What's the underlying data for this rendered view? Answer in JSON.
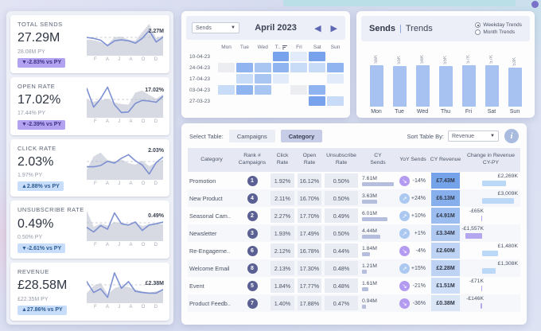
{
  "page": {
    "teal_strip_color": "#badfe7",
    "accent_colors": {
      "purple": "#b3a2ef",
      "blue": "#c8ddf9",
      "bar_blue": "#a7c2f0",
      "revenue_blue": "#6f9fe8"
    }
  },
  "kpi": {
    "cards": [
      {
        "label": "TOTAL SENDS",
        "value": "27.29M",
        "py": "28.08M PY",
        "badge": "▼-2.83% vs PY",
        "badge_style": "purple",
        "spark_label": "2.27M",
        "months": [
          "F",
          "A",
          "J",
          "A",
          "O",
          "D"
        ],
        "line": [
          55,
          52,
          46,
          28,
          44,
          47,
          44,
          36,
          52,
          78,
          40,
          56
        ],
        "area": [
          48,
          46,
          40,
          32,
          56,
          58,
          48,
          44,
          72,
          100,
          52,
          62
        ]
      },
      {
        "label": "OPEN RATE",
        "value": "17.02%",
        "py": "17.44% PY",
        "badge": "▼-2.39% vs PY",
        "badge_style": "purple",
        "spark_label": "17.02%",
        "months": [
          "F",
          "A",
          "J",
          "A",
          "O",
          "D"
        ],
        "line": [
          92,
          30,
          58,
          96,
          38,
          12,
          14,
          42,
          52,
          50,
          46,
          66
        ],
        "area": [
          55,
          48,
          52,
          58,
          45,
          40,
          38,
          78,
          85,
          70,
          58,
          72
        ]
      },
      {
        "label": "CLICK RATE",
        "value": "2.03%",
        "py": "1.97% PY",
        "badge": "▲2.88% vs PY",
        "badge_style": "blue",
        "spark_label": "2.03%",
        "months": [
          "F",
          "A",
          "J",
          "A",
          "O",
          "D"
        ],
        "line": [
          38,
          38,
          42,
          56,
          50,
          66,
          78,
          58,
          44,
          14,
          52,
          70
        ],
        "area": [
          28,
          72,
          85,
          60,
          55,
          62,
          50,
          45,
          58,
          40,
          52,
          62
        ]
      },
      {
        "label": "UNSUBSCRIBE RATE",
        "value": "0.49%",
        "py": "0.50% PY",
        "badge": "▼-2.61% vs PY",
        "badge_style": "blue",
        "spark_label": "0.49%",
        "months": [
          "F",
          "A",
          "J",
          "A",
          "O",
          "D"
        ],
        "line": [
          40,
          25,
          46,
          34,
          88,
          52,
          48,
          58,
          30,
          48,
          52,
          58
        ],
        "area": [
          95,
          42,
          52,
          46,
          58,
          54,
          50,
          55,
          45,
          50,
          54,
          50
        ]
      },
      {
        "label": "REVENUE",
        "value": "£28.58M",
        "py": "£22.35M PY",
        "badge": "▲27.86% vs PY",
        "badge_style": "blue",
        "spark_label": "£2.38M",
        "months": [
          "F",
          "A",
          "J",
          "A",
          "O",
          "D"
        ],
        "line": [
          66,
          30,
          42,
          14,
          95,
          44,
          66,
          34,
          30,
          28,
          28,
          40
        ],
        "area": [
          28,
          52,
          62,
          24,
          44,
          52,
          48,
          40,
          34,
          30,
          34,
          40
        ]
      }
    ]
  },
  "calendar": {
    "measure": "Sends",
    "title": "April 2023",
    "prev": "◀",
    "next": "▶",
    "days": [
      "Mon",
      "Tue",
      "Wed",
      "T..",
      "Fri",
      "Sat",
      "Sun"
    ],
    "sorted_day_index": 3,
    "palette": [
      "transparent",
      "#ebedf1",
      "#e2ebfa",
      "#c8dbf7",
      "#a9c6f3",
      "#8fb4f0",
      "#78a3ec"
    ],
    "rows": [
      {
        "date": "10-04-23",
        "cells": [
          0,
          0,
          0,
          6,
          2,
          6,
          0
        ]
      },
      {
        "date": "24-04-23",
        "cells": [
          1,
          5,
          4,
          5,
          3,
          3,
          5
        ]
      },
      {
        "date": "17-04-23",
        "cells": [
          0,
          3,
          4,
          2,
          0,
          0,
          2
        ]
      },
      {
        "date": "03-04-23",
        "cells": [
          3,
          5,
          4,
          0,
          1,
          5,
          0
        ]
      },
      {
        "date": "27-03-23",
        "cells": [
          0,
          0,
          0,
          0,
          0,
          6,
          3
        ]
      }
    ]
  },
  "trends": {
    "title_left": "Sends",
    "divider": "|",
    "title_right": "Trends",
    "radios": [
      {
        "label": "Weekday Trends",
        "selected": true
      },
      {
        "label": "Month Trends",
        "selected": false
      }
    ],
    "categories": [
      "Mon",
      "Tue",
      "Wed",
      "Thu",
      "Fri",
      "Sat",
      "Sun"
    ],
    "values": [
      56,
      55,
      56,
      55,
      57,
      57,
      53
    ],
    "labels": [
      "56K",
      "55K",
      "56K",
      "55K",
      "57K",
      "57K",
      "53K"
    ]
  },
  "table": {
    "select_label": "Select Table:",
    "tabs": [
      {
        "label": "Campaigns",
        "selected": false
      },
      {
        "label": "Category",
        "selected": true
      }
    ],
    "sort_label": "Sort Table By:",
    "sort_value": "Revenue",
    "info_glyph": "i",
    "columns": [
      "Category",
      "Rank #|Campaigns",
      "Click|Rate",
      "Open|Rate",
      "Unsubscribe|Rate",
      "CY|Sends",
      "YoY Sends",
      "CY Revenue",
      "Change in Revenue|CY-PY"
    ],
    "rows": [
      {
        "category": "Promotion",
        "rank": "1",
        "click": "1.92%",
        "open": "16.12%",
        "unsub": "0.50%",
        "sends": "7.61M",
        "sends_val": 7.61,
        "yoy_dir": "down",
        "yoy": "-14%",
        "revenue": "£7.43M",
        "revenue_val": 7.43,
        "change": "£2,269K",
        "change_val": 2269
      },
      {
        "category": "New Product",
        "rank": "4",
        "click": "2.11%",
        "open": "16.70%",
        "unsub": "0.50%",
        "sends": "3.63M",
        "sends_val": 3.63,
        "yoy_dir": "up",
        "yoy": "+24%",
        "revenue": "£6.13M",
        "revenue_val": 6.13,
        "change": "£3,009K",
        "change_val": 3009
      },
      {
        "category": "Seasonal Cam..",
        "rank": "2",
        "click": "2.27%",
        "open": "17.70%",
        "unsub": "0.49%",
        "sends": "6.01M",
        "sends_val": 6.01,
        "yoy_dir": "up",
        "yoy": "+10%",
        "revenue": "£4.91M",
        "revenue_val": 4.91,
        "change": "-£65K",
        "change_val": -65
      },
      {
        "category": "Newsletter",
        "rank": "3",
        "click": "1.93%",
        "open": "17.49%",
        "unsub": "0.50%",
        "sends": "4.44M",
        "sends_val": 4.44,
        "yoy_dir": "up",
        "yoy": "+1%",
        "revenue": "£3.34M",
        "revenue_val": 3.34,
        "change": "-£1,557K",
        "change_val": -1557
      },
      {
        "category": "Re-Engageme..",
        "rank": "6",
        "click": "2.12%",
        "open": "16.78%",
        "unsub": "0.44%",
        "sends": "1.84M",
        "sends_val": 1.84,
        "yoy_dir": "down",
        "yoy": "-4%",
        "revenue": "£2.60M",
        "revenue_val": 2.6,
        "change": "£1,480K",
        "change_val": 1480
      },
      {
        "category": "Welcome Email",
        "rank": "8",
        "click": "2.13%",
        "open": "17.30%",
        "unsub": "0.48%",
        "sends": "1.21M",
        "sends_val": 1.21,
        "yoy_dir": "up",
        "yoy": "+15%",
        "revenue": "£2.28M",
        "revenue_val": 2.28,
        "change": "£1,308K",
        "change_val": 1308
      },
      {
        "category": "Event",
        "rank": "5",
        "click": "1.84%",
        "open": "17.77%",
        "unsub": "0.48%",
        "sends": "1.61M",
        "sends_val": 1.61,
        "yoy_dir": "down",
        "yoy": "-21%",
        "revenue": "£1.51M",
        "revenue_val": 1.51,
        "change": "-£71K",
        "change_val": -71
      },
      {
        "category": "Product Feedb..",
        "rank": "7",
        "click": "1.40%",
        "open": "17.88%",
        "unsub": "0.47%",
        "sends": "0.94M",
        "sends_val": 0.94,
        "yoy_dir": "down",
        "yoy": "-36%",
        "revenue": "£0.38M",
        "revenue_val": 0.38,
        "change": "-£146K",
        "change_val": -146
      }
    ]
  },
  "chart_data": [
    {
      "type": "bar",
      "title": "Sends | Trends (Weekday Trends)",
      "categories": [
        "Mon",
        "Tue",
        "Wed",
        "Thu",
        "Fri",
        "Sat",
        "Sun"
      ],
      "values": [
        56000,
        55000,
        56000,
        55000,
        57000,
        57000,
        53000
      ],
      "labels": [
        "56K",
        "55K",
        "56K",
        "55K",
        "57K",
        "57K",
        "53K"
      ],
      "xlabel": "Weekday",
      "ylabel": "Sends",
      "grid": false,
      "legend": "none"
    },
    {
      "type": "heatmap",
      "title": "Sends calendar heatmap, April 2023",
      "x": [
        "Mon",
        "Tue",
        "Wed",
        "Thu",
        "Fri",
        "Sat",
        "Sun"
      ],
      "y": [
        "10-04-23",
        "24-04-23",
        "17-04-23",
        "03-04-23",
        "27-03-23"
      ],
      "values_scale": "relative intensity 0-6 (absolute values not shown)",
      "values": [
        [
          0,
          0,
          0,
          6,
          2,
          6,
          0
        ],
        [
          1,
          5,
          4,
          5,
          3,
          3,
          5
        ],
        [
          0,
          3,
          4,
          2,
          0,
          0,
          2
        ],
        [
          3,
          5,
          4,
          0,
          1,
          5,
          0
        ],
        [
          0,
          0,
          0,
          0,
          0,
          6,
          3
        ]
      ]
    },
    {
      "type": "line",
      "title": "KPI sparklines Jan-Dec (relative 0-100, end labels shown)",
      "x": [
        "J",
        "F",
        "M",
        "A",
        "M",
        "J",
        "J",
        "A",
        "S",
        "O",
        "N",
        "D"
      ],
      "series": [
        {
          "name": "Total Sends (end 2.27M)",
          "values": [
            55,
            52,
            46,
            28,
            44,
            47,
            44,
            36,
            52,
            78,
            40,
            56
          ]
        },
        {
          "name": "Open Rate (end 17.02%)",
          "values": [
            92,
            30,
            58,
            96,
            38,
            12,
            14,
            42,
            52,
            50,
            46,
            66
          ]
        },
        {
          "name": "Click Rate (end 2.03%)",
          "values": [
            38,
            38,
            42,
            56,
            50,
            66,
            78,
            58,
            44,
            14,
            52,
            70
          ]
        },
        {
          "name": "Unsubscribe Rate (end 0.49%)",
          "values": [
            40,
            25,
            46,
            34,
            88,
            52,
            48,
            58,
            30,
            48,
            52,
            58
          ]
        },
        {
          "name": "Revenue (end £2.38M)",
          "values": [
            66,
            30,
            42,
            14,
            95,
            44,
            66,
            34,
            30,
            28,
            28,
            40
          ]
        }
      ]
    }
  ]
}
